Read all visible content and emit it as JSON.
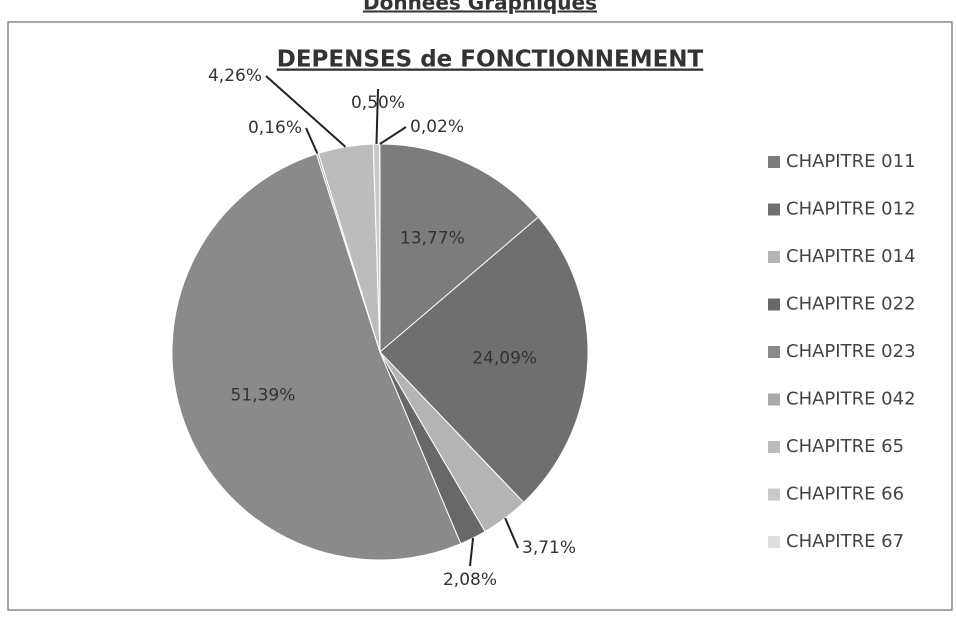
{
  "header": {
    "title": "Données Graphiques"
  },
  "chart_data": {
    "type": "pie",
    "title": "DEPENSES de FONCTIONNEMENT",
    "categories": [
      "CHAPITRE 011",
      "CHAPITRE 012",
      "CHAPITRE 014",
      "CHAPITRE 022",
      "CHAPITRE 023",
      "CHAPITRE 042",
      "CHAPITRE 65",
      "CHAPITRE 66",
      "CHAPITRE 67"
    ],
    "values": [
      13.77,
      24.09,
      3.71,
      2.08,
      51.39,
      0.16,
      4.26,
      0.5,
      0.02
    ],
    "value_labels": [
      "13,77%",
      "24,09%",
      "3,71%",
      "2,08%",
      "51,39%",
      "0,16%",
      "4,26%",
      "0,50%",
      "0,02%"
    ],
    "colors": [
      "#7c7c7c",
      "#6f6f6f",
      "#b4b4b4",
      "#686868",
      "#8a8a8a",
      "#a9a9a9",
      "#bcbcbc",
      "#c9c9c9",
      "#dedede"
    ],
    "legend": "right"
  }
}
